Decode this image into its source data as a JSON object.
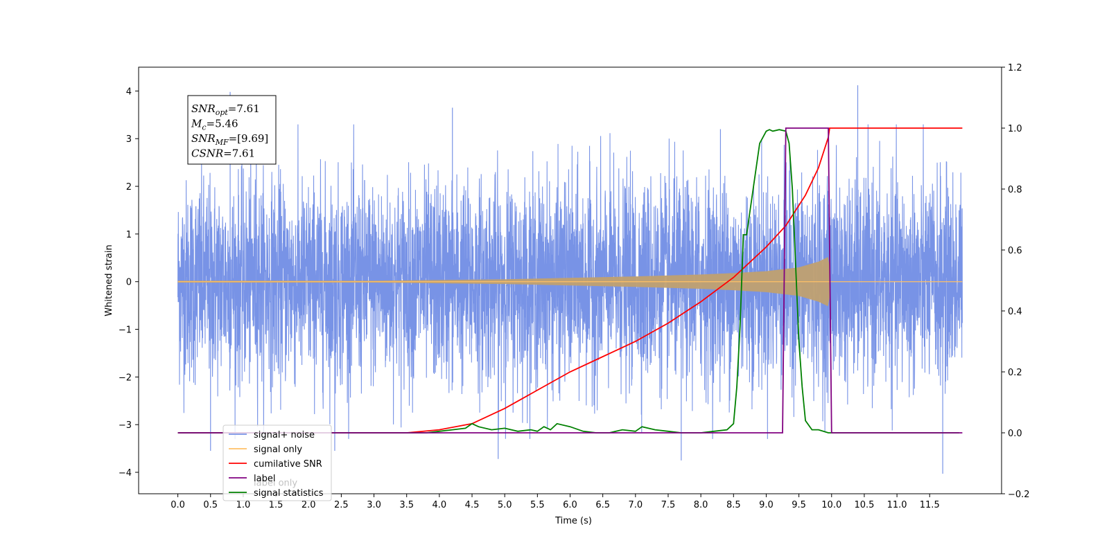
{
  "chart_data": {
    "type": "line",
    "xlabel": "Time (s)",
    "ylabel_left": "Whitened strain",
    "ylabel_right": "",
    "xlim": [
      -0.6,
      12.6
    ],
    "ylim_left": [
      -4.45,
      4.5
    ],
    "ylim_right": [
      -0.2,
      1.2
    ],
    "x_ticks": [
      "0.0",
      "0.5",
      "1.0",
      "1.5",
      "2.0",
      "2.5",
      "3.0",
      "3.5",
      "4.0",
      "4.5",
      "5.0",
      "5.5",
      "6.0",
      "6.5",
      "7.0",
      "7.5",
      "8.0",
      "8.5",
      "9.0",
      "9.5",
      "10.0",
      "10.5",
      "11.0",
      "11.5"
    ],
    "y_ticks_left": [
      "−4",
      "−3",
      "−2",
      "−1",
      "0",
      "1",
      "2",
      "3",
      "4"
    ],
    "y_ticks_right": [
      "−0.2",
      "0.0",
      "0.2",
      "0.4",
      "0.6",
      "0.8",
      "1.0",
      "1.2"
    ],
    "grid": false,
    "legend_position": "lower-left",
    "annotation": {
      "lines": [
        {
          "symbol": "SNR",
          "sub": "opt",
          "value": "=7.61"
        },
        {
          "symbol": "M",
          "sub": "c",
          "value": "=5.46"
        },
        {
          "symbol": "SNR",
          "sub": "MF",
          "value": "=[9.69]"
        },
        {
          "symbol": "CSNR",
          "sub": "",
          "value": "=7.61"
        }
      ]
    },
    "series": [
      {
        "name": "signal+ noise",
        "color": "#7893e6",
        "axis": "left",
        "description_level": "noise with amplitude ~ ±2.5, peaks to ±4",
        "x_range": [
          0.0,
          12.0
        ],
        "amplitude": 2.5,
        "peaks": [
          [
            0.8,
            3.98
          ],
          [
            4.2,
            3.65
          ],
          [
            10.4,
            4.12
          ],
          [
            1.2,
            3.45
          ],
          [
            8.3,
            3.2
          ],
          [
            11.7,
            -4.03
          ],
          [
            7.7,
            -3.75
          ],
          [
            0.5,
            -3.55
          ],
          [
            4.9,
            -3.72
          ],
          [
            2.4,
            -3.55
          ]
        ]
      },
      {
        "name": "signal only",
        "color": "#ffc066",
        "axis": "left",
        "envelope": {
          "x": [
            0.0,
            3.0,
            5.0,
            6.0,
            7.0,
            8.0,
            8.5,
            9.0,
            9.5,
            9.8,
            9.95,
            10.0,
            12.0
          ],
          "y": [
            0.02,
            0.02,
            0.05,
            0.08,
            0.11,
            0.15,
            0.18,
            0.22,
            0.3,
            0.42,
            0.52,
            0.02,
            0.02
          ]
        }
      },
      {
        "name": "cumilative SNR",
        "color": "#ff0000",
        "axis": "right",
        "x": [
          0.0,
          3.5,
          4.0,
          4.5,
          5.0,
          5.5,
          6.0,
          6.5,
          7.0,
          7.5,
          8.0,
          8.5,
          9.0,
          9.3,
          9.6,
          9.8,
          9.95,
          9.97,
          12.0
        ],
        "values": [
          0.0,
          0.0,
          0.01,
          0.03,
          0.08,
          0.14,
          0.2,
          0.25,
          0.3,
          0.36,
          0.43,
          0.51,
          0.61,
          0.68,
          0.78,
          0.87,
          0.97,
          1.0,
          1.0
        ]
      },
      {
        "name": "label",
        "color": "#800080",
        "axis": "right",
        "x": [
          0.0,
          9.25,
          9.3,
          9.95,
          10.0,
          12.0
        ],
        "values": [
          0.0,
          0.0,
          1.0,
          1.0,
          0.0,
          0.0
        ]
      },
      {
        "name": "label only",
        "color": "#800080",
        "axis": "right",
        "hidden_behind_legend": true,
        "x": [],
        "values": []
      },
      {
        "name": "signal statistics",
        "color": "#008000",
        "axis": "right",
        "x": [
          0.0,
          3.8,
          4.0,
          4.2,
          4.4,
          4.5,
          4.6,
          4.8,
          5.0,
          5.2,
          5.4,
          5.5,
          5.6,
          5.7,
          5.8,
          6.0,
          6.2,
          6.4,
          6.6,
          6.8,
          7.0,
          7.1,
          7.3,
          7.5,
          7.7,
          8.0,
          8.2,
          8.4,
          8.5,
          8.55,
          8.6,
          8.65,
          8.7,
          8.8,
          8.9,
          9.0,
          9.05,
          9.1,
          9.2,
          9.3,
          9.35,
          9.4,
          9.45,
          9.5,
          9.55,
          9.6,
          9.7,
          9.8,
          9.95,
          10.0,
          11.95
        ],
        "values": [
          0.0,
          0.0,
          0.005,
          0.01,
          0.015,
          0.03,
          0.02,
          0.01,
          0.015,
          0.005,
          0.01,
          0.005,
          0.02,
          0.01,
          0.03,
          0.02,
          0.005,
          0.0,
          0.0,
          0.01,
          0.005,
          0.02,
          0.01,
          0.005,
          0.0,
          0.0,
          0.005,
          0.01,
          0.03,
          0.15,
          0.35,
          0.65,
          0.65,
          0.8,
          0.95,
          0.99,
          0.995,
          0.99,
          0.995,
          0.99,
          0.95,
          0.8,
          0.55,
          0.3,
          0.15,
          0.04,
          0.01,
          0.01,
          0.0,
          0.0,
          0.0
        ]
      }
    ]
  }
}
